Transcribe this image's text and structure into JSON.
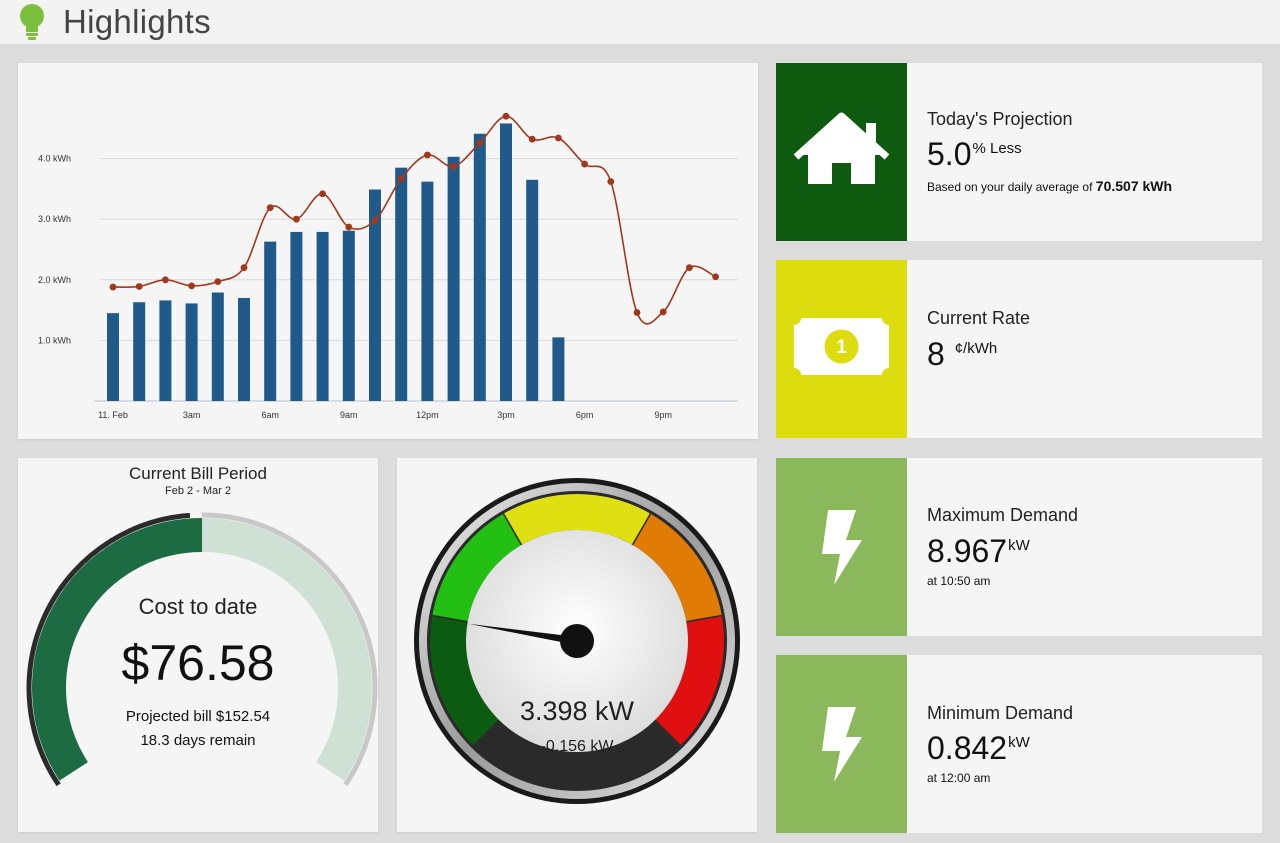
{
  "header": {
    "title": "Highlights",
    "icon": "lightbulb-icon",
    "icon_color": "#7cbf3c"
  },
  "chart_data": {
    "type": "bar",
    "y_unit": "kWh",
    "y_ticks": [
      "1.0 kWh",
      "2.0 kWh",
      "3.0 kWh",
      "4.0 kWh"
    ],
    "ylim": [
      0,
      5
    ],
    "x_ticks": [
      "11. Feb",
      "3am",
      "6am",
      "9am",
      "12pm",
      "3pm",
      "6pm",
      "9pm"
    ],
    "x_tick_hours": [
      0,
      3,
      6,
      9,
      12,
      15,
      18,
      21
    ],
    "series": [
      {
        "type": "bar",
        "color": "#1f5a8a",
        "x_hours": [
          0,
          1,
          2,
          3,
          4,
          5,
          6,
          7,
          8,
          9,
          10,
          11,
          12,
          13,
          14,
          15,
          16,
          17
        ],
        "values": [
          1.45,
          1.63,
          1.66,
          1.61,
          1.79,
          1.7,
          2.63,
          2.79,
          2.79,
          2.81,
          3.49,
          3.85,
          3.62,
          4.03,
          4.41,
          4.58,
          3.65,
          1.05
        ]
      },
      {
        "type": "line",
        "color": "#a0381c",
        "x_hours": [
          0,
          1,
          2,
          3,
          4,
          5,
          6,
          7,
          8,
          9,
          10,
          11,
          12,
          13,
          14,
          15,
          16,
          17,
          18,
          19,
          20,
          21,
          22,
          23
        ],
        "values": [
          1.88,
          1.89,
          2.0,
          1.9,
          1.97,
          2.2,
          3.19,
          3.0,
          3.42,
          2.87,
          2.98,
          3.67,
          4.06,
          3.87,
          4.26,
          4.7,
          4.32,
          4.34,
          3.91,
          3.62,
          1.46,
          1.47,
          2.2,
          2.05
        ]
      }
    ]
  },
  "bill": {
    "title": "Current Bill Period",
    "dates": "Feb 2 - Mar 2",
    "cost_label": "Cost to date",
    "cost": "$76.58",
    "projected": "Projected bill $152.54",
    "remaining": "18.3 days remain",
    "progress": 0.5,
    "fill_color": "#1d6b43",
    "track_color": "#cfe0d4"
  },
  "gauge": {
    "value": "3.398 kW",
    "delta": "-0.156 kW",
    "needle_fraction": 0.2
  },
  "cards": {
    "projection": {
      "label": "Today's Projection",
      "value": "5.0",
      "unit": "% Less",
      "sub_prefix": "Based on your daily average of",
      "sub_value": "70.507 kWh",
      "color": "#0e5a0e",
      "icon": "house-icon"
    },
    "rate": {
      "label": "Current Rate",
      "value": "8",
      "unit": "¢/kWh",
      "color": "#dddc0f",
      "icon": "money-icon"
    },
    "max_demand": {
      "label": "Maximum Demand",
      "value": "8.967",
      "unit": "kW",
      "sub": "at 10:50 am",
      "color": "#8ab85a",
      "icon": "lightning-icon"
    },
    "min_demand": {
      "label": "Minimum Demand",
      "value": "0.842",
      "unit": "kW",
      "sub": "at 12:00 am",
      "color": "#8ab85a",
      "icon": "lightning-icon"
    }
  }
}
